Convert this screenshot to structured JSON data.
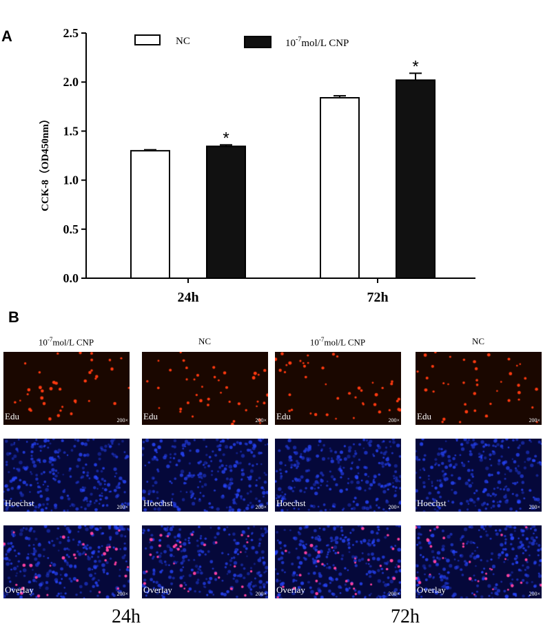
{
  "panel_a_letter": "A",
  "panel_b_letter": "B",
  "chart_data": {
    "type": "bar",
    "title": "",
    "xlabel": "",
    "ylabel": "CCK-8（OD450nm）",
    "ylim": [
      0,
      2.5
    ],
    "yticks": [
      "0.0",
      "0.5",
      "1.0",
      "1.5",
      "2.0",
      "2.5"
    ],
    "categories": [
      "24h",
      "72h"
    ],
    "series": [
      {
        "name": "NC",
        "values": [
          1.3,
          1.84
        ],
        "errors": [
          0.01,
          0.02
        ],
        "color": "#ffffff"
      },
      {
        "name": "10-7mol/L CNP",
        "values": [
          1.345,
          2.02
        ],
        "errors": [
          0.015,
          0.07
        ],
        "color": "#111111"
      }
    ],
    "significance": [
      {
        "category": "24h",
        "series": "10-7mol/L CNP",
        "mark": "*"
      },
      {
        "category": "72h",
        "series": "10-7mol/L CNP",
        "mark": "*"
      }
    ],
    "legend": {
      "placement": "top",
      "entries": [
        "NC",
        "10-7mol/L CNP"
      ]
    },
    "grid": false
  },
  "panel_b": {
    "columns": [
      {
        "base": "10",
        "exp": "-7",
        "rest": "mol/L CNP"
      },
      {
        "base": "",
        "exp": "",
        "rest": "NC"
      },
      {
        "base": "10",
        "exp": "-7",
        "rest": "mol/L CNP"
      },
      {
        "base": "",
        "exp": "",
        "rest": "NC"
      }
    ],
    "stains": [
      "Edu",
      "Hoechst",
      "Overlay"
    ],
    "magnification": "200×",
    "time_labels": [
      "24h",
      "72h"
    ],
    "colors": {
      "edu_bg": "#1a0700",
      "edu_cell": "#ff3a10",
      "hoechst_bg": "#05083a",
      "hoechst_cell": "#1e3dff",
      "overlay_cell": "#ff40a0"
    }
  }
}
